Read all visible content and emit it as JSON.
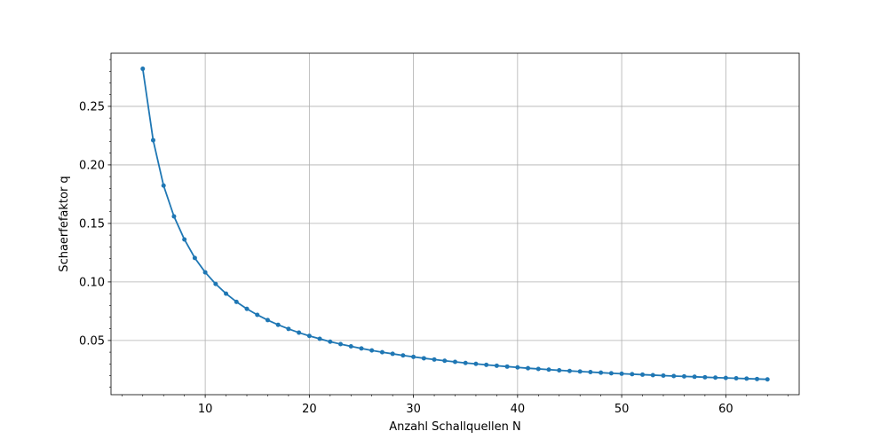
{
  "chart_data": {
    "type": "line",
    "title": "",
    "xlabel": "Anzahl Schallquellen N",
    "ylabel": "Schaerfefaktor q",
    "xlim": [
      0.95,
      67.05
    ],
    "ylim": [
      0.0037,
      0.2954
    ],
    "xticks": [
      10,
      20,
      30,
      40,
      50,
      60
    ],
    "xtick_labels": [
      "10",
      "20",
      "30",
      "40",
      "50",
      "60"
    ],
    "yticks": [
      0.05,
      0.1,
      0.15,
      0.2,
      0.25
    ],
    "ytick_labels": [
      "0.05",
      "0.10",
      "0.15",
      "0.20",
      "0.25"
    ],
    "grid": true,
    "minor_ticks": true,
    "line_color": "#1f77b4",
    "marker": "circle",
    "legend": "none",
    "x": [
      4,
      5,
      6,
      7,
      8,
      9,
      10,
      11,
      12,
      13,
      14,
      15,
      16,
      17,
      18,
      19,
      20,
      21,
      22,
      23,
      24,
      25,
      26,
      27,
      28,
      29,
      30,
      31,
      32,
      33,
      34,
      35,
      36,
      37,
      38,
      39,
      40,
      41,
      42,
      43,
      44,
      45,
      46,
      47,
      48,
      49,
      50,
      51,
      52,
      53,
      54,
      55,
      56,
      57,
      58,
      59,
      60,
      61,
      62,
      63,
      64
    ],
    "y": [
      0.2821,
      0.2211,
      0.1823,
      0.156,
      0.1363,
      0.1205,
      0.1082,
      0.0983,
      0.09,
      0.083,
      0.077,
      0.0719,
      0.0674,
      0.0634,
      0.0599,
      0.0567,
      0.0539,
      0.0514,
      0.049,
      0.0469,
      0.045,
      0.0432,
      0.0415,
      0.04,
      0.0386,
      0.0372,
      0.036,
      0.0348,
      0.0337,
      0.0327,
      0.0317,
      0.0308,
      0.03,
      0.0292,
      0.0284,
      0.0277,
      0.027,
      0.0263,
      0.0257,
      0.0251,
      0.0245,
      0.024,
      0.0235,
      0.023,
      0.0225,
      0.022,
      0.0216,
      0.0212,
      0.0208,
      0.0204,
      0.02,
      0.0196,
      0.0193,
      0.019,
      0.0186,
      0.0183,
      0.018,
      0.0177,
      0.0174,
      0.0171,
      0.0168
    ]
  }
}
